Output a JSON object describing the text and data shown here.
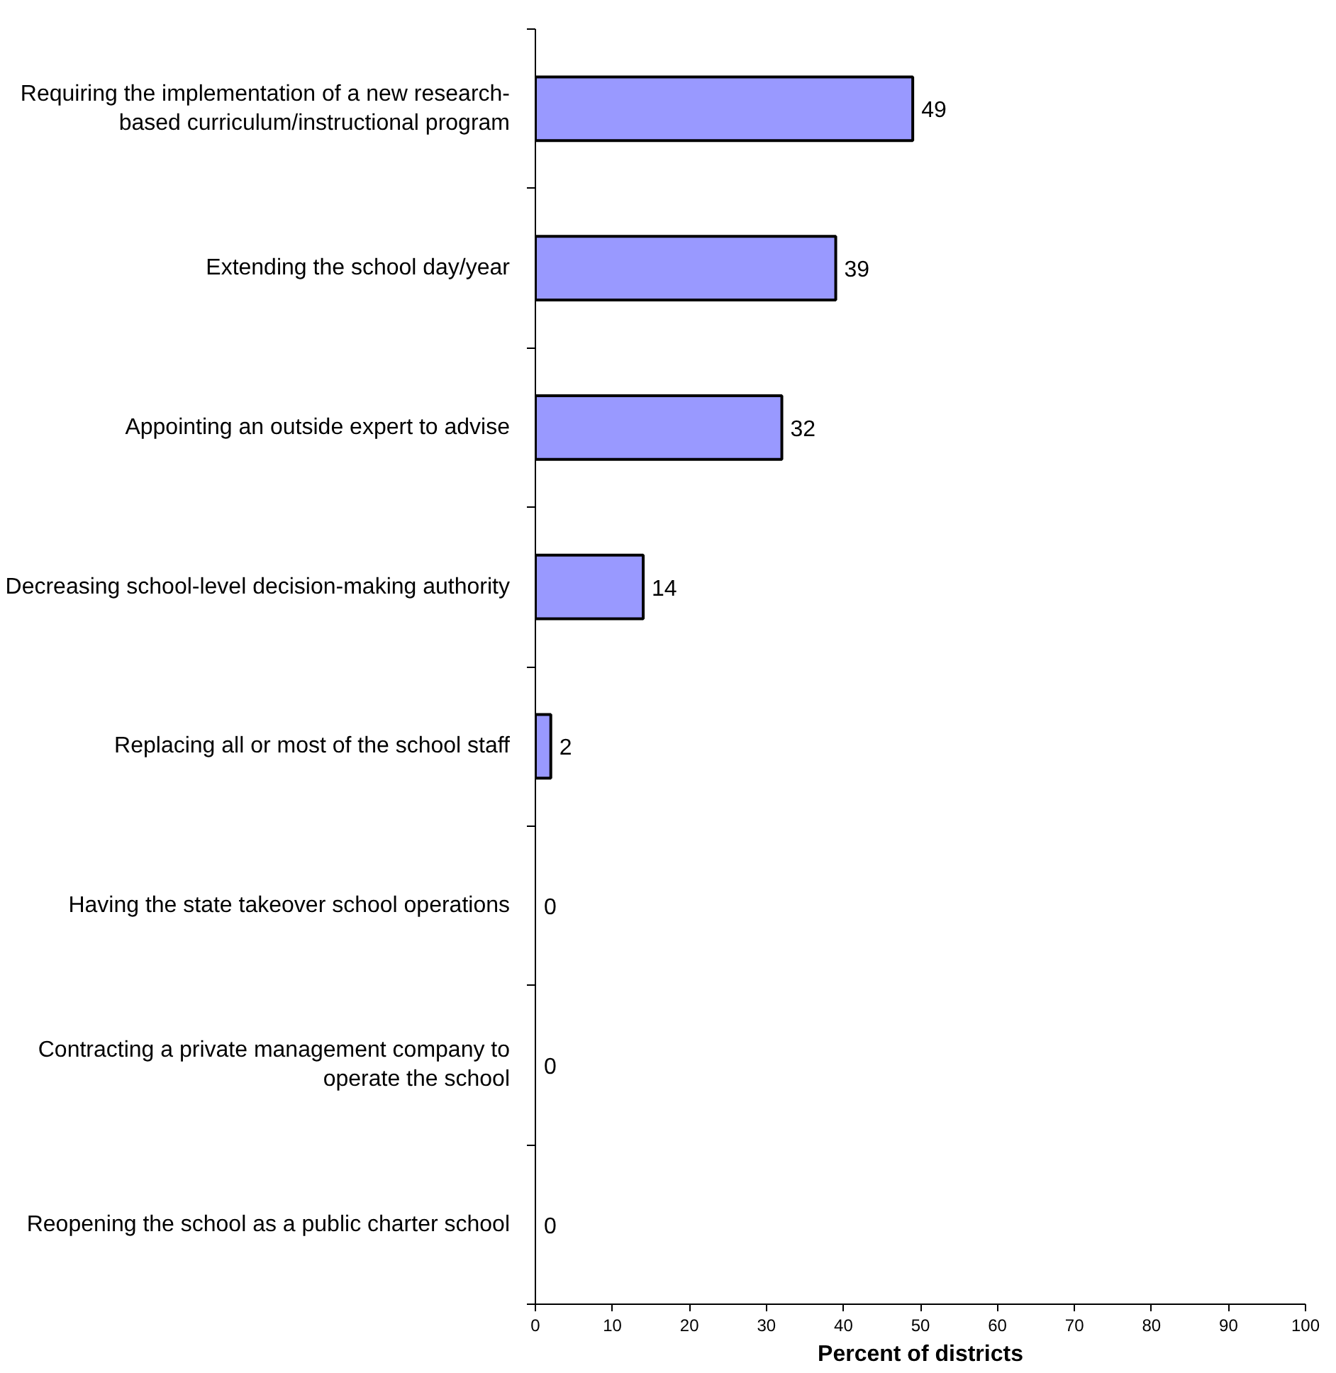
{
  "chart_data": {
    "type": "bar",
    "orientation": "horizontal",
    "xlabel": "Percent of districts",
    "categories": [
      "Requiring the implementation of a new research-based curriculum/instructional program",
      "Extending the school day/year",
      "Appointing an outside expert to advise",
      "Decreasing school-level decision-making authority",
      "Replacing all or most of the school staff",
      "Having the state takeover school operations",
      "Contracting a private management company to operate the school",
      "Reopening the school as a public charter school"
    ],
    "values": [
      49,
      39,
      32,
      14,
      2,
      0,
      0,
      0
    ],
    "color": "#9999ff",
    "xlim": [
      0,
      100
    ],
    "xticks": [
      0,
      10,
      20,
      30,
      40,
      50,
      60,
      70,
      80,
      90,
      100
    ],
    "data_labels": true,
    "grid": false
  }
}
